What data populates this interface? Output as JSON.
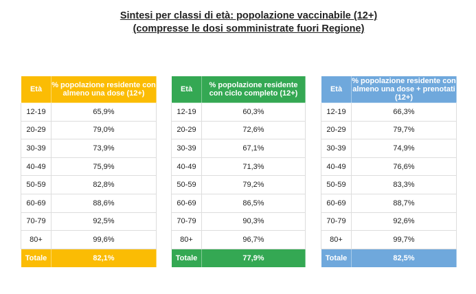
{
  "title": {
    "line1": "Sintesi per classi di età: popolazione vaccinabile (12+)",
    "line2": "(compresse le dosi somministrate fuori Regione)"
  },
  "tables": [
    {
      "color": "#FBBC04",
      "header_age": "Età",
      "header_value": "% popolazione residente con almeno una dose (12+)",
      "rows": [
        {
          "age": "12-19",
          "value": "65,9%"
        },
        {
          "age": "20-29",
          "value": "79,0%"
        },
        {
          "age": "30-39",
          "value": "73,9%"
        },
        {
          "age": "40-49",
          "value": "75,9%"
        },
        {
          "age": "50-59",
          "value": "82,8%"
        },
        {
          "age": "60-69",
          "value": "88,6%"
        },
        {
          "age": "70-79",
          "value": "92,5%"
        },
        {
          "age": "80+",
          "value": "99,6%"
        }
      ],
      "total_label": "Totale",
      "total_value": "82,1%"
    },
    {
      "color": "#34A853",
      "header_age": "Età",
      "header_value": "% popolazione residente con ciclo completo (12+)",
      "rows": [
        {
          "age": "12-19",
          "value": "60,3%"
        },
        {
          "age": "20-29",
          "value": "72,6%"
        },
        {
          "age": "30-39",
          "value": "67,1%"
        },
        {
          "age": "40-49",
          "value": "71,3%"
        },
        {
          "age": "50-59",
          "value": "79,2%"
        },
        {
          "age": "60-69",
          "value": "86,5%"
        },
        {
          "age": "70-79",
          "value": "90,3%"
        },
        {
          "age": "80+",
          "value": "96,7%"
        }
      ],
      "total_label": "Totale",
      "total_value": "77,9%"
    },
    {
      "color": "#6FA8DC",
      "header_age": "Età",
      "header_value": "% popolazione residente con almeno una dose + prenotati (12+)",
      "rows": [
        {
          "age": "12-19",
          "value": "66,3%"
        },
        {
          "age": "20-29",
          "value": "79,7%"
        },
        {
          "age": "30-39",
          "value": "74,9%"
        },
        {
          "age": "40-49",
          "value": "76,6%"
        },
        {
          "age": "50-59",
          "value": "83,3%"
        },
        {
          "age": "60-69",
          "value": "88,7%"
        },
        {
          "age": "70-79",
          "value": "92,6%"
        },
        {
          "age": "80+",
          "value": "99,7%"
        }
      ],
      "total_label": "Totale",
      "total_value": "82,5%"
    }
  ]
}
